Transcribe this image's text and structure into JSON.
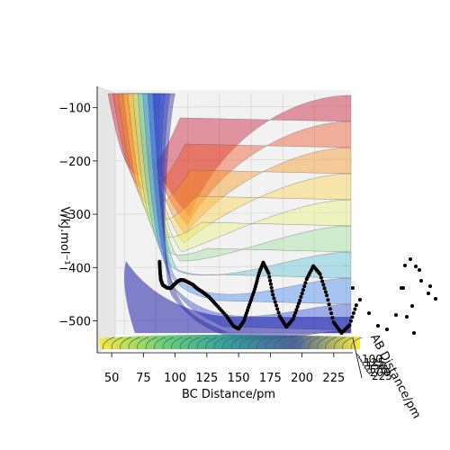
{
  "chart_data": {
    "type": "surface3d",
    "zlabel": "V/kJ.mol⁻¹",
    "xlabel": "BC Distance/pm",
    "ylabel": "AB Distance/pm",
    "x_ticks": [
      50,
      75,
      100,
      125,
      150,
      175,
      200,
      225
    ],
    "z_ticks": [
      -100,
      -200,
      -300,
      -400,
      -500
    ],
    "y_ticks": [
      100,
      125,
      150,
      175,
      200,
      225
    ],
    "xlim": [
      40,
      240
    ],
    "zlim": [
      -560,
      -60
    ],
    "ylim": [
      75,
      230
    ],
    "grid": true,
    "surface": {
      "colormap": "jet-like translucent bands",
      "band_colors": [
        "#c8102e",
        "#ee4e22",
        "#f7941d",
        "#ffd24a",
        "#e6f27a",
        "#9fe29a",
        "#57c4d6",
        "#3f86f0",
        "#2b4bd8",
        "#1f1fa8"
      ]
    },
    "contour_floor": {
      "colormap": "viridis",
      "colors": [
        "#440154",
        "#3b528b",
        "#21908d",
        "#5dc963",
        "#fde725"
      ]
    },
    "trajectory": {
      "color": "#000000",
      "points": [
        [
          62,
          290,
          -375
        ],
        [
          64,
          280,
          -395
        ],
        [
          66,
          270,
          -410
        ],
        [
          70,
          255,
          -422
        ],
        [
          75,
          245,
          -428
        ],
        [
          80,
          230,
          -430
        ],
        [
          85,
          215,
          -425
        ],
        [
          90,
          200,
          -420
        ],
        [
          95,
          185,
          -418
        ],
        [
          100,
          170,
          -420
        ],
        [
          105,
          160,
          -425
        ],
        [
          110,
          150,
          -430
        ],
        [
          115,
          140,
          -438
        ],
        [
          120,
          135,
          -445
        ],
        [
          126,
          130,
          -455
        ],
        [
          132,
          128,
          -470
        ],
        [
          140,
          126,
          -490
        ],
        [
          146,
          125,
          -510
        ],
        [
          150,
          125,
          -515
        ],
        [
          154,
          126,
          -500
        ],
        [
          158,
          128,
          -470
        ],
        [
          162,
          130,
          -440
        ],
        [
          165,
          132,
          -410
        ],
        [
          168,
          134,
          -390
        ],
        [
          172,
          136,
          -410
        ],
        [
          175,
          138,
          -450
        ],
        [
          180,
          140,
          -490
        ],
        [
          185,
          142,
          -510
        ],
        [
          190,
          144,
          -495
        ],
        [
          195,
          146,
          -460
        ],
        [
          200,
          148,
          -420
        ],
        [
          205,
          150,
          -395
        ],
        [
          210,
          152,
          -410
        ],
        [
          215,
          154,
          -450
        ],
        [
          220,
          156,
          -500
        ],
        [
          226,
          158,
          -520
        ],
        [
          232,
          160,
          -505
        ],
        [
          238,
          162,
          -460
        ]
      ]
    }
  }
}
